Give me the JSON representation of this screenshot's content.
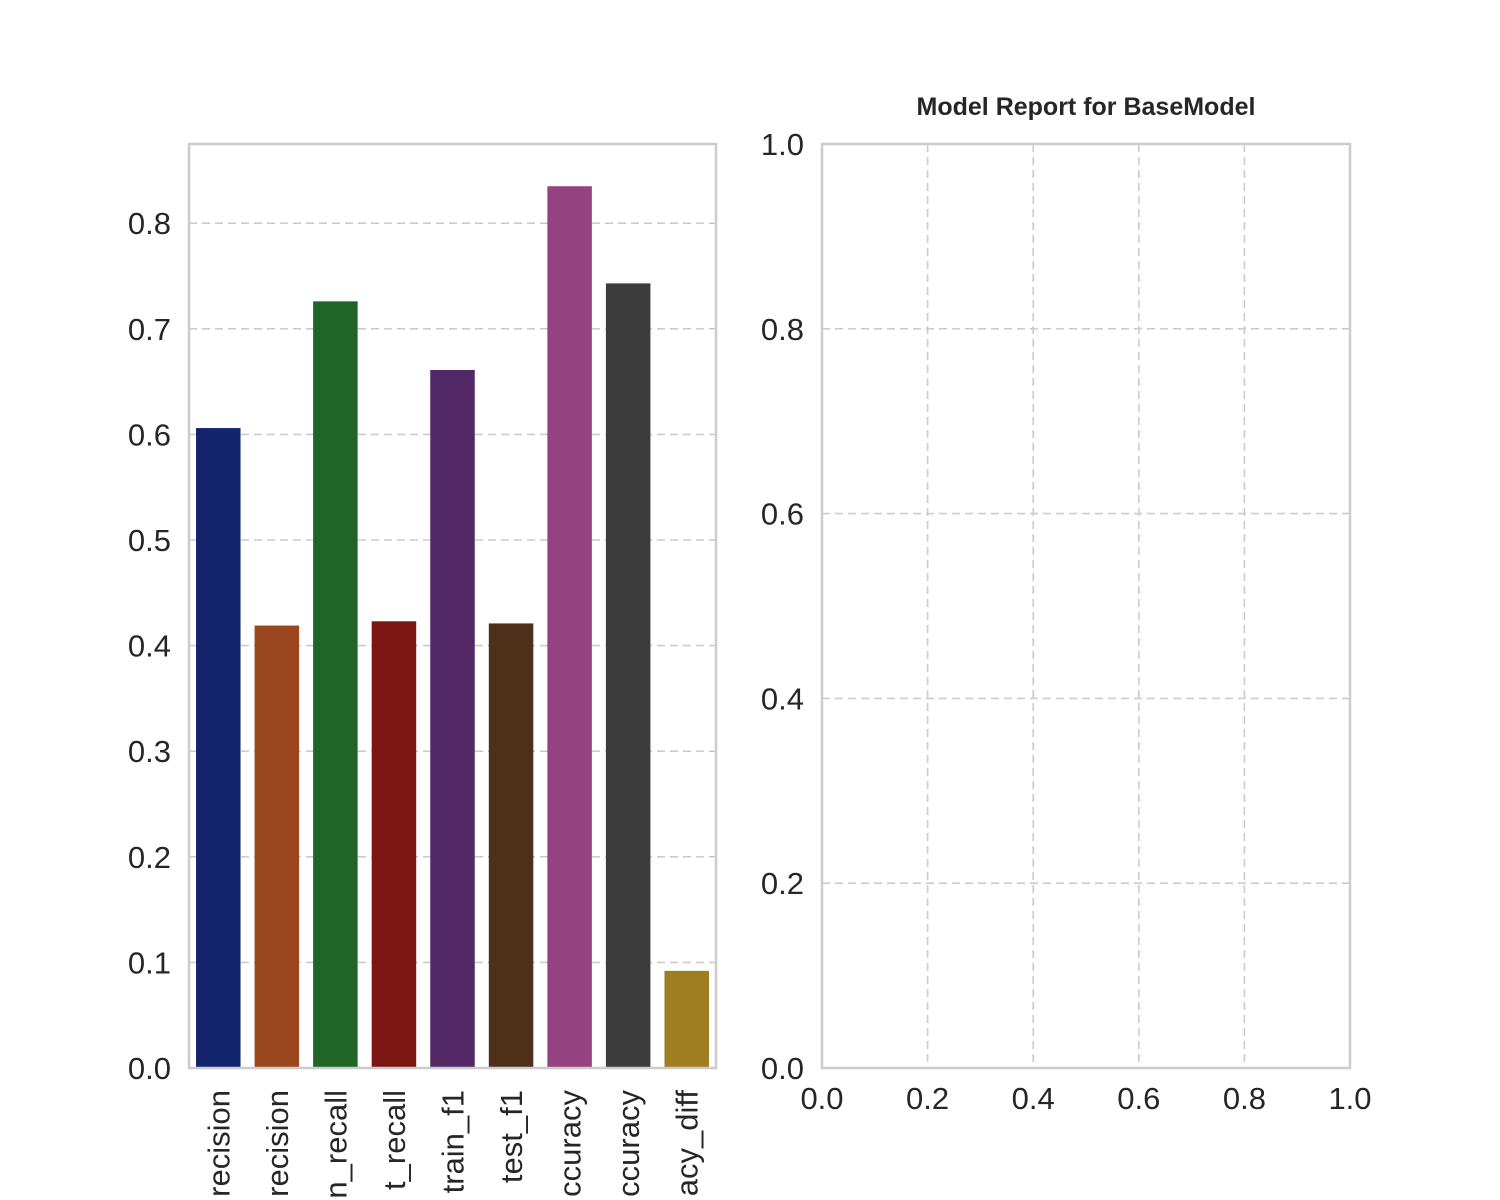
{
  "chart_data": [
    {
      "type": "bar",
      "title": "",
      "xlabel": "",
      "ylabel": "",
      "categories": [
        "train_precision",
        "test_precision",
        "train_recall",
        "test_recall",
        "train_f1",
        "test_f1",
        "train_accuracy",
        "test_accuracy",
        "accuracy_diff"
      ],
      "visible_category_labels": [
        "recision",
        "recision",
        "n_recall",
        "t_recall",
        "train_f1",
        "test_f1",
        "ccuracy",
        "ccuracy",
        "acy_diff"
      ],
      "values": [
        0.606,
        0.419,
        0.726,
        0.423,
        0.661,
        0.421,
        0.835,
        0.743,
        0.092
      ],
      "colors": [
        "#12246e",
        "#9b4820",
        "#1f6528",
        "#7a1713",
        "#522866",
        "#4e301a",
        "#944280",
        "#3c3c3c",
        "#a07d21"
      ],
      "ylim": [
        0,
        0.875
      ],
      "yticks": [
        "0.0",
        "0.1",
        "0.2",
        "0.3",
        "0.4",
        "0.5",
        "0.6",
        "0.7",
        "0.8"
      ],
      "grid": "horizontal dashed"
    },
    {
      "type": "scatter",
      "title": "Model Report for BaseModel",
      "xlabel": "",
      "ylabel": "",
      "series": [],
      "xlim": [
        0,
        1
      ],
      "ylim": [
        0,
        1
      ],
      "xticks": [
        "0.0",
        "0.2",
        "0.4",
        "0.6",
        "0.8",
        "1.0"
      ],
      "yticks": [
        "0.0",
        "0.2",
        "0.4",
        "0.6",
        "0.8",
        "1.0"
      ],
      "grid": "both dashed"
    }
  ]
}
